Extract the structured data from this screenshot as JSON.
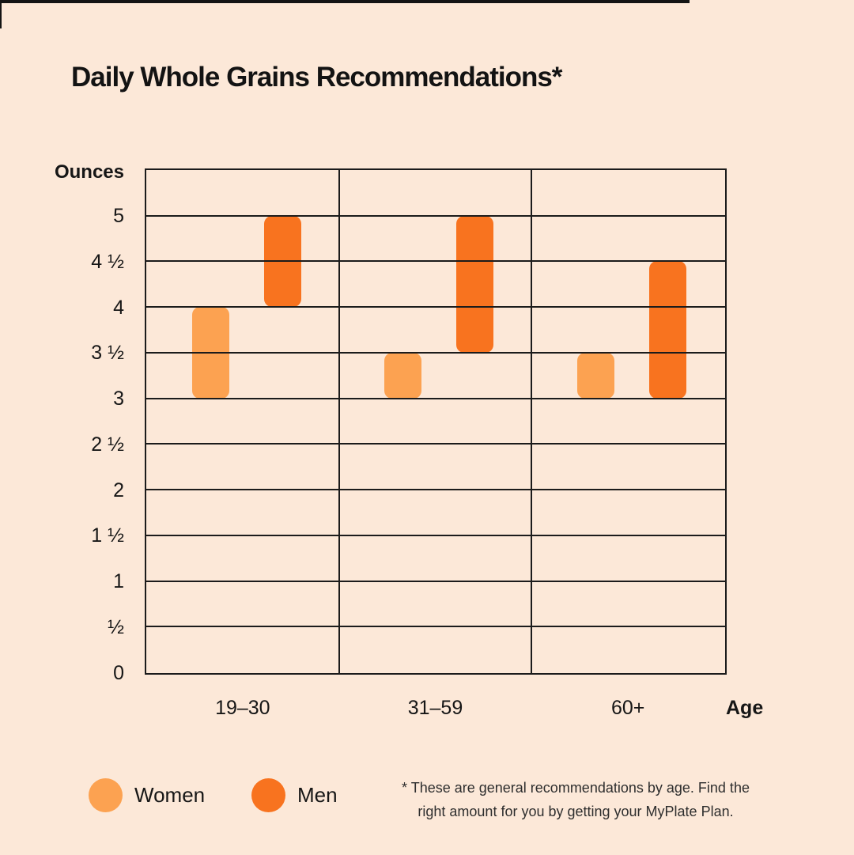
{
  "title": "Daily Whole Grains Recommendations*",
  "y_axis": {
    "label": "Ounces",
    "tick_labels": [
      "5",
      "4 ½",
      "4",
      "3 ½",
      "3",
      "2 ½",
      "2",
      "1 ½",
      "1",
      "½",
      "0"
    ]
  },
  "x_axis": {
    "label": "Age",
    "categories": [
      "19–30",
      "31–59",
      "60+"
    ]
  },
  "legend": {
    "items": [
      {
        "label": "Women",
        "color": "#FCA251"
      },
      {
        "label": "Men",
        "color": "#F8731F"
      }
    ]
  },
  "footnote": {
    "line1": "* These are general recommendations by age. Find the",
    "line2": "right amount for you by getting your MyPlate Plan."
  },
  "colors": {
    "background": "#FCE8D8",
    "grid_line": "#1B1B1B",
    "text": "#161616",
    "women_bar": "#FCA251",
    "men_bar": "#F8731F"
  },
  "chart_data": {
    "type": "bar",
    "subtype": "floating_range_columns",
    "title": "Daily Whole Grains Recommendations*",
    "units": "ounces per day",
    "categories": [
      "19–30",
      "31–59",
      "60+"
    ],
    "series": [
      {
        "name": "Women",
        "color": "#FCA251",
        "ranges_oz": [
          [
            3,
            4
          ],
          [
            3,
            3.5
          ],
          [
            3,
            3.5
          ]
        ]
      },
      {
        "name": "Men",
        "color": "#F8731F",
        "ranges_oz": [
          [
            4,
            5
          ],
          [
            3.5,
            5
          ],
          [
            3,
            4.5
          ]
        ]
      }
    ],
    "xlabel": "Age",
    "ylabel": "Ounces",
    "ylim": [
      0,
      5.5
    ],
    "ytick_step": 0.5,
    "grid": true,
    "legend_position": "bottom-left"
  }
}
